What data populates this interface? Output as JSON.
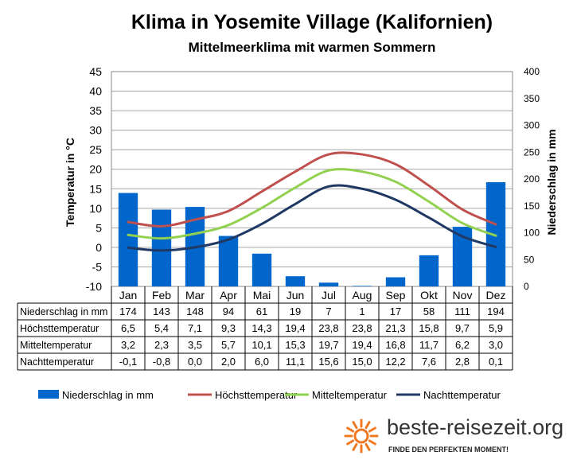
{
  "chart_data": {
    "type": "bar-line",
    "title": "Klima in Yosemite Village (Kalifornien)",
    "subtitle": "Mittelmeerklima mit warmen Sommern",
    "ylabel_left": "Temperatur in °C",
    "ylabel_right": "Niederschlag in mm",
    "ylim_left": [
      -10,
      45
    ],
    "ylim_right": [
      0,
      400
    ],
    "yticks_left": [
      "45",
      "40",
      "35",
      "30",
      "25",
      "20",
      "15",
      "10",
      "5",
      "0",
      "-5",
      "-10"
    ],
    "yticks_right": [
      "400",
      "350",
      "300",
      "250",
      "200",
      "150",
      "100",
      "50",
      "0"
    ],
    "categories": [
      "Jan",
      "Feb",
      "Mar",
      "Apr",
      "Mai",
      "Jun",
      "Jul",
      "Aug",
      "Sep",
      "Okt",
      "Nov",
      "Dez"
    ],
    "grid": true,
    "legend_position": "bottom",
    "series": [
      {
        "name": "Niederschlag in mm",
        "kind": "bar",
        "axis": "right",
        "color": "#0066CC",
        "values": [
          174,
          143,
          148,
          94,
          61,
          19,
          7,
          1,
          17,
          58,
          111,
          194
        ],
        "labels": [
          "174",
          "143",
          "148",
          "94",
          "61",
          "19",
          "7",
          "1",
          "17",
          "58",
          "111",
          "194"
        ]
      },
      {
        "name": "Höchsttemperatur",
        "kind": "line",
        "axis": "left",
        "color": "#C0504D",
        "values": [
          6.5,
          5.4,
          7.1,
          9.3,
          14.3,
          19.4,
          23.8,
          23.8,
          21.3,
          15.8,
          9.7,
          5.9
        ],
        "labels": [
          "6,5",
          "5,4",
          "7,1",
          "9,3",
          "14,3",
          "19,4",
          "23,8",
          "23,8",
          "21,3",
          "15,8",
          "9,7",
          "5,9"
        ]
      },
      {
        "name": "Mitteltemperatur",
        "kind": "line",
        "axis": "left",
        "color": "#92D050",
        "values": [
          3.2,
          2.3,
          3.5,
          5.7,
          10.1,
          15.3,
          19.7,
          19.4,
          16.8,
          11.7,
          6.2,
          3.0
        ],
        "labels": [
          "3,2",
          "2,3",
          "3,5",
          "5,7",
          "10,1",
          "15,3",
          "19,7",
          "19,4",
          "16,8",
          "11,7",
          "6,2",
          "3,0"
        ]
      },
      {
        "name": "Nachttemperatur",
        "kind": "line",
        "axis": "left",
        "color": "#1F3864",
        "values": [
          -0.1,
          -0.8,
          0.0,
          2.0,
          6.0,
          11.1,
          15.6,
          15.0,
          12.2,
          7.6,
          2.8,
          0.1
        ],
        "labels": [
          "-0,1",
          "-0,8",
          "0,0",
          "2,0",
          "6,0",
          "11,1",
          "15,6",
          "15,0",
          "12,2",
          "7,6",
          "2,8",
          "0,1"
        ]
      }
    ]
  },
  "logo": {
    "text": "beste-reisezeit.org",
    "tagline": "FINDE DEN PERFEKTEN MOMENT!",
    "sun_color": "#F07820"
  }
}
